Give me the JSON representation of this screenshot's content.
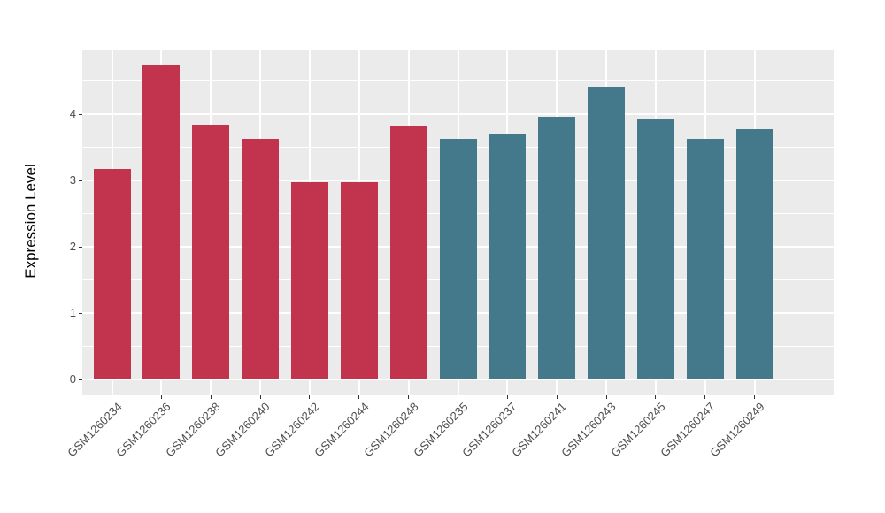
{
  "chart_data": {
    "type": "bar",
    "title": "",
    "xlabel": "",
    "ylabel": "Expression Level",
    "categories": [
      "GSM1260234",
      "GSM1260236",
      "GSM1260238",
      "GSM1260240",
      "GSM1260242",
      "GSM1260244",
      "GSM1260248",
      "GSM1260235",
      "GSM1260237",
      "GSM1260241",
      "GSM1260243",
      "GSM1260245",
      "GSM1260247",
      "GSM1260249"
    ],
    "values": [
      3.18,
      4.74,
      3.84,
      3.63,
      2.98,
      2.98,
      3.81,
      3.63,
      3.69,
      3.96,
      4.42,
      3.92,
      3.63,
      3.77
    ],
    "colors": [
      "#C2344E",
      "#C2344E",
      "#C2344E",
      "#C2344E",
      "#C2344E",
      "#C2344E",
      "#C2344E",
      "#43798B",
      "#43798B",
      "#43798B",
      "#43798B",
      "#43798B",
      "#43798B",
      "#43798B"
    ],
    "group_colors": {
      "group1": "#C2344E",
      "group2": "#43798B"
    },
    "yticks": [
      "0",
      "1",
      "2",
      "3",
      "4"
    ],
    "ylim": [
      -0.24,
      4.97
    ],
    "grid": "on",
    "legend": "none",
    "panel_bg": "#EBEBEB",
    "grid_color": "#FFFFFF"
  }
}
